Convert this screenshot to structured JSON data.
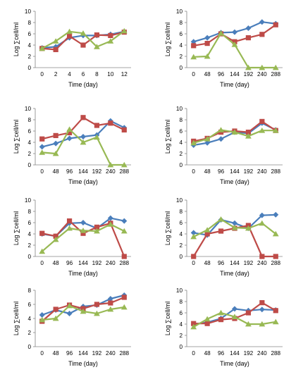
{
  "colors": {
    "blue": "#4a7ebb",
    "red": "#be4b48",
    "green": "#98b954",
    "axis": "#868686",
    "grid": "#868686"
  },
  "chart_data": [
    {
      "type": "line",
      "x": [
        "0",
        "2",
        "4",
        "6",
        "8",
        "10",
        "12"
      ],
      "xlabel": "Time (day)",
      "ylabel": "Log ∑cell/ml",
      "ylim": [
        0,
        10
      ],
      "yticks": [
        0,
        2,
        4,
        6,
        8,
        10
      ],
      "series": [
        {
          "color": "blue",
          "marker": "diamond",
          "values": [
            3.5,
            3.7,
            5.3,
            5.7,
            5.7,
            5.9,
            6.4
          ]
        },
        {
          "color": "red",
          "marker": "square",
          "values": [
            3.4,
            3.2,
            5.6,
            4.0,
            5.8,
            5.7,
            6.3
          ]
        },
        {
          "color": "green",
          "marker": "triangle",
          "values": [
            3.4,
            4.7,
            6.4,
            6.1,
            3.7,
            4.7,
            6.5
          ]
        }
      ]
    },
    {
      "type": "line",
      "x": [
        "0",
        "48",
        "96",
        "144",
        "192",
        "240",
        "288"
      ],
      "xlabel": "Time (day)",
      "ylabel": "Log ∑cell/ml",
      "ylim": [
        0,
        10
      ],
      "yticks": [
        0,
        2,
        4,
        6,
        8,
        10
      ],
      "series": [
        {
          "color": "blue",
          "marker": "diamond",
          "values": [
            4.6,
            5.3,
            6.2,
            6.3,
            7.0,
            8.1,
            7.8
          ]
        },
        {
          "color": "red",
          "marker": "square",
          "values": [
            3.9,
            4.3,
            6.0,
            4.6,
            5.3,
            5.9,
            7.6
          ]
        },
        {
          "color": "green",
          "marker": "triangle",
          "values": [
            1.9,
            2.0,
            6.1,
            4.1,
            0.0,
            0.0,
            0.0
          ]
        }
      ]
    },
    {
      "type": "line",
      "x": [
        "0",
        "48",
        "96",
        "144",
        "192",
        "240",
        "288"
      ],
      "xlabel": "Time (day)",
      "ylabel": "Log ∑cell/ml",
      "ylim": [
        0,
        10
      ],
      "yticks": [
        0,
        2,
        4,
        6,
        8,
        10
      ],
      "series": [
        {
          "color": "blue",
          "marker": "diamond",
          "values": [
            3.2,
            3.8,
            4.7,
            5.0,
            5.3,
            7.8,
            6.6
          ]
        },
        {
          "color": "red",
          "marker": "square",
          "values": [
            4.6,
            5.2,
            5.7,
            8.4,
            7.0,
            7.4,
            6.2
          ]
        },
        {
          "color": "green",
          "marker": "triangle",
          "values": [
            2.2,
            2.0,
            6.3,
            4.0,
            4.9,
            0.0,
            0.0
          ]
        }
      ]
    },
    {
      "type": "line",
      "x": [
        "0",
        "48",
        "96",
        "144",
        "192",
        "240",
        "288"
      ],
      "xlabel": "Time (day)",
      "ylabel": "Log ∑cell/ml",
      "ylim": [
        0,
        10
      ],
      "yticks": [
        0,
        2,
        4,
        6,
        8,
        10
      ],
      "series": [
        {
          "color": "blue",
          "marker": "diamond",
          "values": [
            3.5,
            3.9,
            4.6,
            5.8,
            5.6,
            7.4,
            6.2
          ]
        },
        {
          "color": "red",
          "marker": "square",
          "values": [
            4.2,
            4.7,
            5.8,
            6.0,
            5.8,
            7.7,
            6.1
          ]
        },
        {
          "color": "green",
          "marker": "triangle",
          "values": [
            3.9,
            4.6,
            6.2,
            5.8,
            5.1,
            6.1,
            6.1
          ]
        }
      ]
    },
    {
      "type": "line",
      "x": [
        "0",
        "48",
        "96",
        "144",
        "192",
        "240",
        "288"
      ],
      "xlabel": "Time (day)",
      "ylabel": "Log ∑cell/ml",
      "ylim": [
        0,
        10
      ],
      "yticks": [
        0,
        2,
        4,
        6,
        8,
        10
      ],
      "series": [
        {
          "color": "blue",
          "marker": "diamond",
          "values": [
            4.0,
            3.6,
            5.9,
            6.0,
            5.0,
            6.8,
            6.3
          ]
        },
        {
          "color": "red",
          "marker": "square",
          "values": [
            4.1,
            3.6,
            6.3,
            4.1,
            5.2,
            5.9,
            0.0
          ]
        },
        {
          "color": "green",
          "marker": "triangle",
          "values": [
            0.9,
            3.0,
            5.0,
            4.6,
            4.5,
            5.7,
            4.5
          ]
        }
      ]
    },
    {
      "type": "line",
      "x": [
        "0",
        "48",
        "96",
        "144",
        "192",
        "240",
        "288"
      ],
      "xlabel": "Time (day)",
      "ylabel": "Log ∑cell/ml",
      "ylim": [
        0,
        10
      ],
      "yticks": [
        0,
        2,
        4,
        6,
        8,
        10
      ],
      "series": [
        {
          "color": "blue",
          "marker": "diamond",
          "values": [
            4.2,
            3.8,
            6.5,
            5.9,
            5.0,
            7.3,
            7.4
          ]
        },
        {
          "color": "red",
          "marker": "square",
          "values": [
            0.0,
            4.0,
            4.5,
            5.0,
            5.5,
            0.0,
            0.0
          ]
        },
        {
          "color": "green",
          "marker": "triangle",
          "values": [
            3.5,
            4.7,
            6.6,
            5.1,
            5.0,
            5.9,
            4.0
          ]
        }
      ]
    },
    {
      "type": "line",
      "x": [
        "0",
        "48",
        "96",
        "144",
        "192",
        "240",
        "288"
      ],
      "xlabel": "Time  (day)",
      "ylabel": "Log ∑cell/ml",
      "ylim": [
        0,
        8
      ],
      "yticks": [
        0,
        2,
        4,
        6,
        8
      ],
      "series": [
        {
          "color": "blue",
          "marker": "diamond",
          "values": [
            4.5,
            5.2,
            4.7,
            5.7,
            5.9,
            6.8,
            7.3
          ]
        },
        {
          "color": "red",
          "marker": "square",
          "values": [
            3.6,
            5.3,
            5.9,
            5.4,
            6.0,
            6.2,
            7.0
          ]
        },
        {
          "color": "green",
          "marker": "triangle",
          "values": [
            3.8,
            4.0,
            5.8,
            5.0,
            4.7,
            5.3,
            5.6
          ]
        }
      ]
    },
    {
      "type": "line",
      "x": [
        "0",
        "48",
        "96",
        "144",
        "192",
        "240",
        "288"
      ],
      "xlabel": "Time  (day)",
      "ylabel": "Log ∑cell/ml",
      "ylim": [
        0,
        10
      ],
      "yticks": [
        0,
        2,
        4,
        6,
        8,
        10
      ],
      "series": [
        {
          "color": "blue",
          "marker": "diamond",
          "values": [
            4.0,
            4.3,
            5.0,
            6.7,
            6.4,
            6.6,
            6.5
          ]
        },
        {
          "color": "red",
          "marker": "square",
          "values": [
            4.1,
            4.1,
            4.8,
            5.0,
            6.0,
            7.8,
            6.4
          ]
        },
        {
          "color": "green",
          "marker": "triangle",
          "values": [
            3.5,
            4.9,
            6.0,
            5.3,
            4.0,
            4.0,
            4.4
          ]
        }
      ]
    }
  ]
}
